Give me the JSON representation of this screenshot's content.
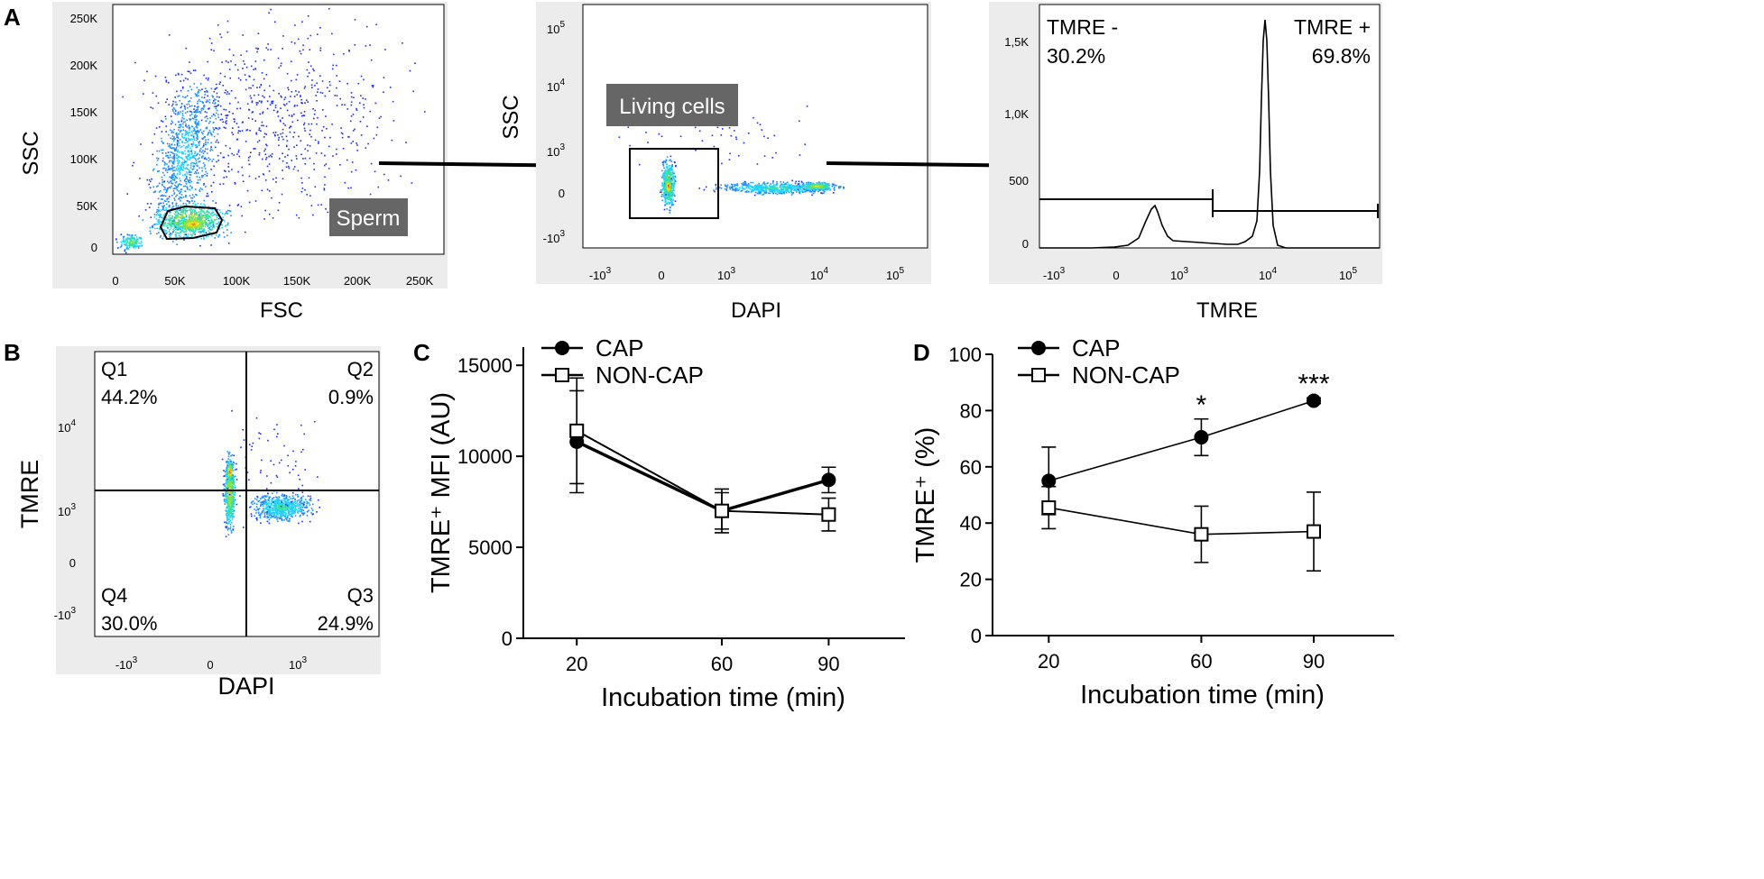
{
  "panel_letters": {
    "a": "A",
    "b": "B",
    "c": "C",
    "d": "D"
  },
  "panel_a": {
    "plot1": {
      "ylabel": "SSC",
      "xlabel": "FSC",
      "yticks": [
        "250K",
        "200K",
        "150K",
        "100K",
        "50K",
        "0"
      ],
      "xticks": [
        "0",
        "50K",
        "100K",
        "150K",
        "200K",
        "250K"
      ],
      "gate_label": "Sperm"
    },
    "plot2": {
      "ylabel": "SSC",
      "xlabel": "DAPI",
      "yticks": [
        {
          "base": "10",
          "exp": "5"
        },
        {
          "base": "10",
          "exp": "4"
        },
        {
          "base": "10",
          "exp": "3"
        },
        {
          "base": "0",
          "exp": ""
        },
        {
          "base": "-10",
          "exp": "3"
        }
      ],
      "xticks": [
        {
          "base": "-10",
          "exp": "3"
        },
        {
          "base": "0",
          "exp": ""
        },
        {
          "base": "10",
          "exp": "3"
        },
        {
          "base": "10",
          "exp": "4"
        },
        {
          "base": "10",
          "exp": "5"
        }
      ],
      "gate_label": "Living cells"
    },
    "plot3": {
      "xlabel": "TMRE",
      "yticks": [
        "1,5K",
        "1,0K",
        "500",
        "0"
      ],
      "xticks": [
        {
          "base": "-10",
          "exp": "3"
        },
        {
          "base": "0",
          "exp": ""
        },
        {
          "base": "10",
          "exp": "3"
        },
        {
          "base": "10",
          "exp": "4"
        },
        {
          "base": "10",
          "exp": "5"
        }
      ],
      "neg_label": "TMRE -",
      "neg_value": "30.2%",
      "pos_label": "TMRE +",
      "pos_value": "69.8%"
    }
  },
  "panel_b": {
    "ylabel": "TMRE",
    "xlabel": "DAPI",
    "yticks": [
      {
        "base": "10",
        "exp": "4"
      },
      {
        "base": "10",
        "exp": "3"
      },
      {
        "base": "0",
        "exp": ""
      },
      {
        "base": "-10",
        "exp": "3"
      }
    ],
    "xticks": [
      {
        "base": "-10",
        "exp": "3"
      },
      {
        "base": "0",
        "exp": ""
      },
      {
        "base": "10",
        "exp": "3"
      }
    ],
    "quadrants": [
      {
        "name": "Q1",
        "value": "44.2%"
      },
      {
        "name": "Q2",
        "value": "0.9%"
      },
      {
        "name": "Q3",
        "value": "24.9%"
      },
      {
        "name": "Q4",
        "value": "30.0%"
      }
    ]
  },
  "chart_data": [
    {
      "panel": "C",
      "type": "line",
      "xlabel": "Incubation time (min)",
      "ylabel": "TMRE⁺ MFI (AU)",
      "categories": [
        20,
        60,
        90
      ],
      "ylim": [
        0,
        16000
      ],
      "yticks": [
        0,
        5000,
        10000,
        15000
      ],
      "series": [
        {
          "name": "CAP",
          "marker": "filled-circle",
          "values": [
            10800,
            7000,
            8700
          ],
          "errors": [
            2800,
            1000,
            700
          ]
        },
        {
          "name": "NON-CAP",
          "marker": "open-square",
          "values": [
            11400,
            7000,
            6800
          ],
          "errors": [
            2900,
            1200,
            900
          ]
        }
      ],
      "annotations": []
    },
    {
      "panel": "D",
      "type": "line",
      "xlabel": "Incubation time (min)",
      "ylabel": "TMRE⁺ (%)",
      "categories": [
        20,
        60,
        90
      ],
      "ylim": [
        0,
        100
      ],
      "yticks": [
        0,
        20,
        40,
        60,
        80,
        100
      ],
      "series": [
        {
          "name": "CAP",
          "marker": "filled-circle",
          "values": [
            55,
            70.5,
            83.5
          ],
          "errors": [
            12,
            6.5,
            1
          ]
        },
        {
          "name": "NON-CAP",
          "marker": "open-square",
          "values": [
            45.5,
            36,
            37
          ],
          "errors": [
            7.5,
            10,
            14
          ]
        }
      ],
      "annotations": [
        {
          "category": 60,
          "text": "*"
        },
        {
          "category": 90,
          "text": "***"
        }
      ]
    }
  ]
}
